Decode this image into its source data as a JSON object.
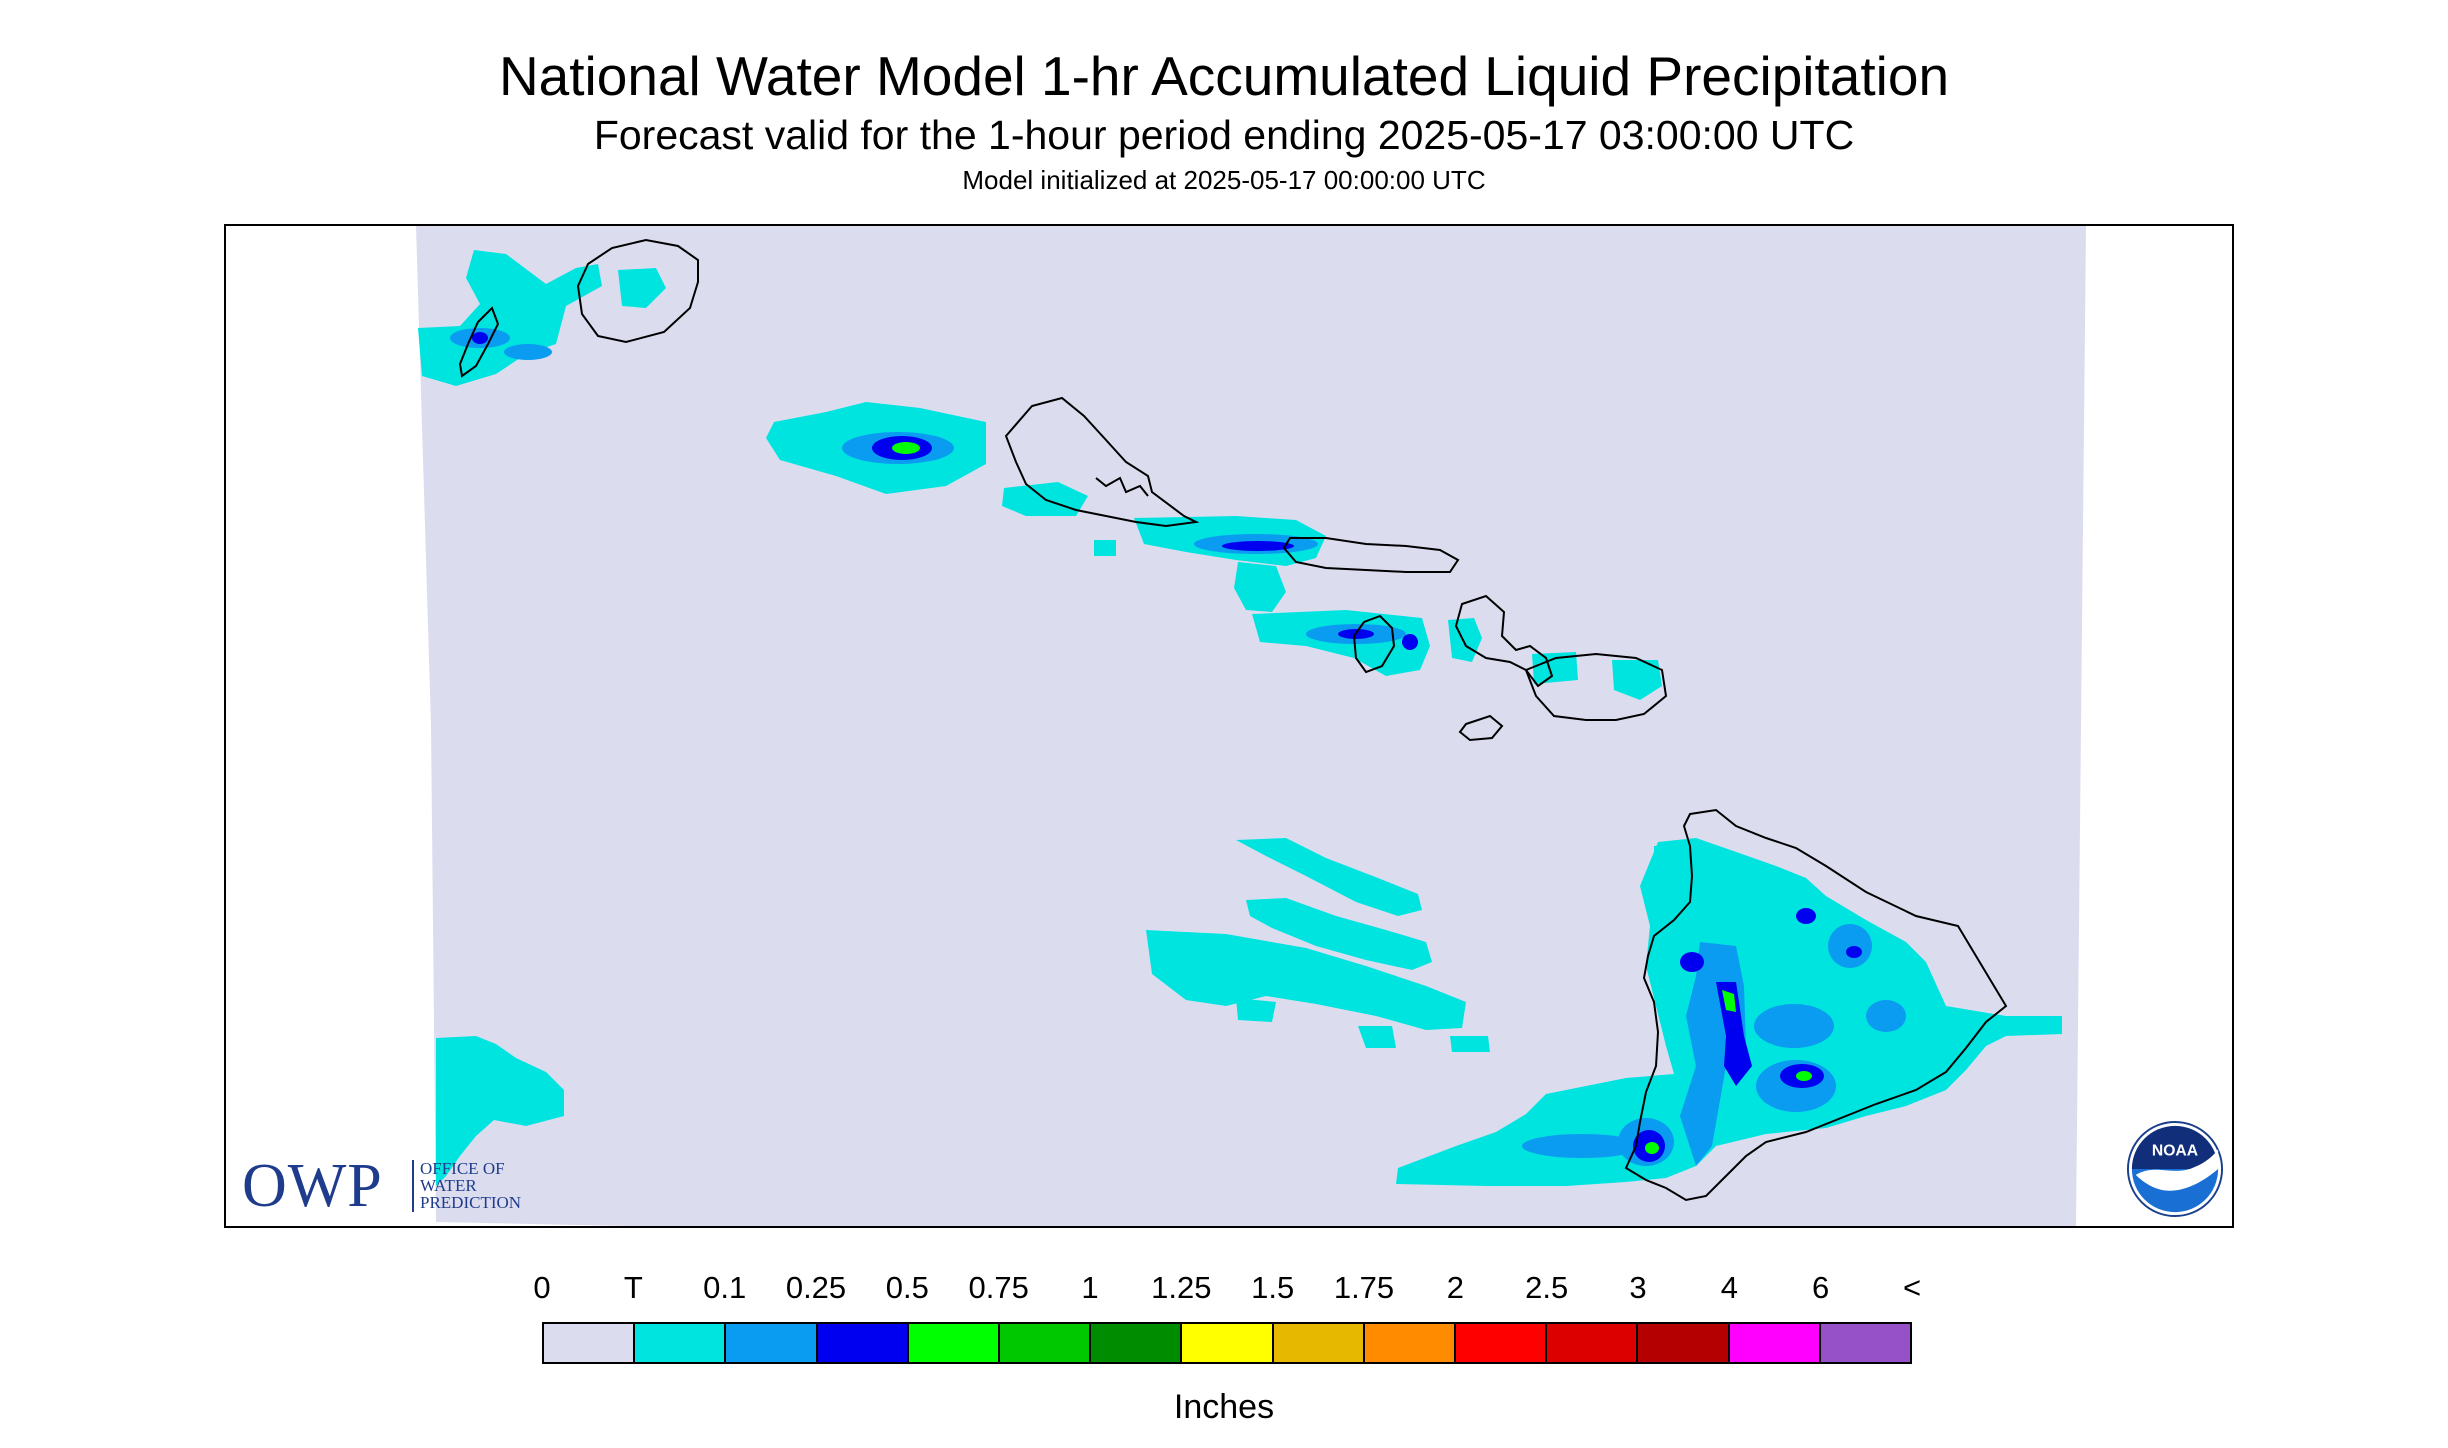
{
  "title": "National Water Model 1-hr Accumulated Liquid Precipitation",
  "subtitle": "Forecast valid for the 1-hour period ending 2025-05-17 03:00:00 UTC",
  "init_text": "Model initialized at 2025-05-17 00:00:00 UTC",
  "colors": {
    "zero": "#dcdcef",
    "trace": "#00e4e0",
    "p0_1": "#0a9cf0",
    "p0_25": "#0000f0",
    "p0_5": "#00ff00",
    "coastline": "#000000",
    "owp_blue": "#1f3c8c",
    "noaa_blue": "#1a6fd4"
  },
  "owp": {
    "letters": "OWP",
    "line1": "OFFICE OF",
    "line2": "WATER",
    "line3": "PREDICTION"
  },
  "noaa": {
    "text": "NOAA"
  },
  "legend": {
    "labels": [
      "0",
      "T",
      "0.1",
      "0.25",
      "0.5",
      "0.75",
      "1",
      "1.25",
      "1.5",
      "1.75",
      "2",
      "2.5",
      "3",
      "4",
      "6",
      "<"
    ],
    "colors": [
      "#dcdcef",
      "#00e4e0",
      "#0a9cf0",
      "#0000f0",
      "#00ff00",
      "#00c800",
      "#008c00",
      "#ffff00",
      "#e6b800",
      "#ff8c00",
      "#ff0000",
      "#dc0000",
      "#b40000",
      "#ff00ff",
      "#9650c8"
    ],
    "units": "Inches"
  }
}
